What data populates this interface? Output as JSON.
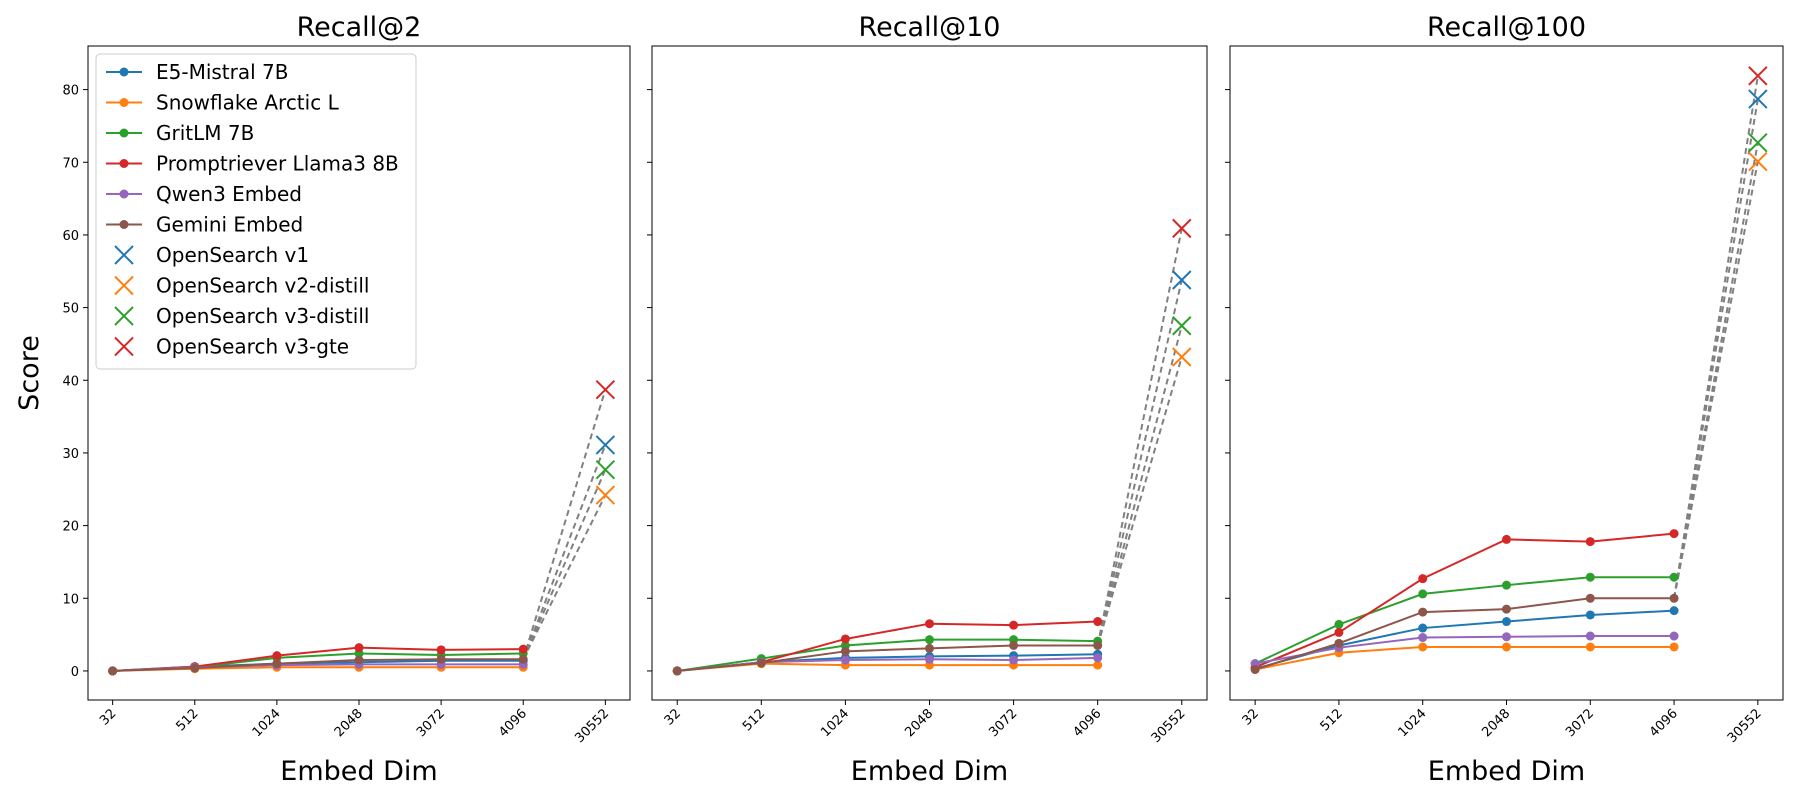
{
  "chart_data": [
    {
      "type": "line",
      "title": "Recall@2",
      "xlabel": "Embed Dim",
      "ylabel": "Score",
      "categories": [
        "32",
        "512",
        "1024",
        "2048",
        "3072",
        "4096",
        "30552"
      ],
      "ylim": [
        -4,
        86
      ],
      "yticks": [
        0,
        10,
        20,
        30,
        40,
        50,
        60,
        70,
        80
      ],
      "show_ytick_labels": true,
      "legend": "upper left",
      "series": [
        {
          "name": "E5-Mistral 7B",
          "color": "#1f77b4",
          "marker": "circle",
          "values": [
            0,
            0.6,
            1.0,
            1.2,
            1.4,
            1.4,
            null
          ]
        },
        {
          "name": "Snowflake Arctic L",
          "color": "#ff7f0e",
          "marker": "circle",
          "values": [
            0,
            0.3,
            0.5,
            0.5,
            0.5,
            0.5,
            null
          ]
        },
        {
          "name": "GritLM 7B",
          "color": "#2ca02c",
          "marker": "circle",
          "values": [
            0,
            0.5,
            1.8,
            2.4,
            2.2,
            2.4,
            null
          ]
        },
        {
          "name": "Promptriever Llama3 8B",
          "color": "#d62728",
          "marker": "circle",
          "values": [
            0,
            0.6,
            2.1,
            3.2,
            2.9,
            3.0,
            null
          ]
        },
        {
          "name": "Qwen3 Embed",
          "color": "#9467bd",
          "marker": "circle",
          "values": [
            0,
            0.5,
            0.8,
            0.9,
            0.9,
            0.9,
            null
          ]
        },
        {
          "name": "Gemini Embed",
          "color": "#8c564b",
          "marker": "circle",
          "values": [
            0,
            0.4,
            1.0,
            1.5,
            1.6,
            1.6,
            null
          ]
        },
        {
          "name": "OpenSearch v1",
          "color": "#1f77b4",
          "marker": "x",
          "values": [
            null,
            null,
            null,
            null,
            null,
            null,
            31.1
          ]
        },
        {
          "name": "OpenSearch v2-distill",
          "color": "#ff7f0e",
          "marker": "x",
          "values": [
            null,
            null,
            null,
            null,
            null,
            null,
            24.2
          ]
        },
        {
          "name": "OpenSearch v3-distill",
          "color": "#2ca02c",
          "marker": "x",
          "values": [
            null,
            null,
            null,
            null,
            null,
            null,
            27.7
          ]
        },
        {
          "name": "OpenSearch v3-gte",
          "color": "#d62728",
          "marker": "x",
          "values": [
            null,
            null,
            null,
            null,
            null,
            null,
            38.7
          ]
        }
      ]
    },
    {
      "type": "line",
      "title": "Recall@10",
      "xlabel": "Embed Dim",
      "categories": [
        "32",
        "512",
        "1024",
        "2048",
        "3072",
        "4096",
        "30552"
      ],
      "ylim": [
        -4,
        86
      ],
      "yticks": [
        0,
        10,
        20,
        30,
        40,
        50,
        60,
        70,
        80
      ],
      "show_ytick_labels": false,
      "series": [
        {
          "name": "E5-Mistral 7B",
          "color": "#1f77b4",
          "marker": "circle",
          "values": [
            0,
            1.2,
            1.8,
            2.0,
            2.1,
            2.3,
            null
          ]
        },
        {
          "name": "Snowflake Arctic L",
          "color": "#ff7f0e",
          "marker": "circle",
          "values": [
            0,
            1.0,
            0.8,
            0.8,
            0.8,
            0.8,
            null
          ]
        },
        {
          "name": "GritLM 7B",
          "color": "#2ca02c",
          "marker": "circle",
          "values": [
            0,
            1.7,
            3.5,
            4.3,
            4.3,
            4.1,
            null
          ]
        },
        {
          "name": "Promptriever Llama3 8B",
          "color": "#d62728",
          "marker": "circle",
          "values": [
            0,
            1.2,
            4.4,
            6.5,
            6.3,
            6.8,
            null
          ]
        },
        {
          "name": "Qwen3 Embed",
          "color": "#9467bd",
          "marker": "circle",
          "values": [
            0,
            1.2,
            1.5,
            1.6,
            1.5,
            1.8,
            null
          ]
        },
        {
          "name": "Gemini Embed",
          "color": "#8c564b",
          "marker": "circle",
          "values": [
            0,
            1.1,
            2.7,
            3.1,
            3.5,
            3.5,
            null
          ]
        },
        {
          "name": "OpenSearch v1",
          "color": "#1f77b4",
          "marker": "x",
          "values": [
            null,
            null,
            null,
            null,
            null,
            null,
            53.8
          ]
        },
        {
          "name": "OpenSearch v2-distill",
          "color": "#ff7f0e",
          "marker": "x",
          "values": [
            null,
            null,
            null,
            null,
            null,
            null,
            43.2
          ]
        },
        {
          "name": "OpenSearch v3-distill",
          "color": "#2ca02c",
          "marker": "x",
          "values": [
            null,
            null,
            null,
            null,
            null,
            null,
            47.5
          ]
        },
        {
          "name": "OpenSearch v3-gte",
          "color": "#d62728",
          "marker": "x",
          "values": [
            null,
            null,
            null,
            null,
            null,
            null,
            60.9
          ]
        }
      ]
    },
    {
      "type": "line",
      "title": "Recall@100",
      "xlabel": "Embed Dim",
      "categories": [
        "32",
        "512",
        "1024",
        "2048",
        "3072",
        "4096",
        "30552"
      ],
      "ylim": [
        -4,
        86
      ],
      "yticks": [
        0,
        10,
        20,
        30,
        40,
        50,
        60,
        70,
        80
      ],
      "show_ytick_labels": false,
      "series": [
        {
          "name": "E5-Mistral 7B",
          "color": "#1f77b4",
          "marker": "circle",
          "values": [
            0.3,
            3.5,
            5.9,
            6.8,
            7.7,
            8.3,
            null
          ]
        },
        {
          "name": "Snowflake Arctic L",
          "color": "#ff7f0e",
          "marker": "circle",
          "values": [
            0.2,
            2.5,
            3.3,
            3.3,
            3.3,
            3.3,
            null
          ]
        },
        {
          "name": "GritLM 7B",
          "color": "#2ca02c",
          "marker": "circle",
          "values": [
            1.0,
            6.4,
            10.6,
            11.8,
            12.9,
            12.9,
            null
          ]
        },
        {
          "name": "Promptriever Llama3 8B",
          "color": "#d62728",
          "marker": "circle",
          "values": [
            0.5,
            5.3,
            12.7,
            18.1,
            17.8,
            18.9,
            null
          ]
        },
        {
          "name": "Qwen3 Embed",
          "color": "#9467bd",
          "marker": "circle",
          "values": [
            1.0,
            3.2,
            4.6,
            4.7,
            4.8,
            4.8,
            null
          ]
        },
        {
          "name": "Gemini Embed",
          "color": "#8c564b",
          "marker": "circle",
          "values": [
            0.2,
            3.8,
            8.1,
            8.5,
            10.0,
            10.0,
            null
          ]
        },
        {
          "name": "OpenSearch v1",
          "color": "#1f77b4",
          "marker": "x",
          "values": [
            null,
            null,
            null,
            null,
            null,
            null,
            78.7
          ]
        },
        {
          "name": "OpenSearch v2-distill",
          "color": "#ff7f0e",
          "marker": "x",
          "values": [
            null,
            null,
            null,
            null,
            null,
            null,
            70.1
          ]
        },
        {
          "name": "OpenSearch v3-distill",
          "color": "#2ca02c",
          "marker": "x",
          "values": [
            null,
            null,
            null,
            null,
            null,
            null,
            72.7
          ]
        },
        {
          "name": "OpenSearch v3-gte",
          "color": "#d62728",
          "marker": "x",
          "values": [
            null,
            null,
            null,
            null,
            null,
            null,
            81.9
          ]
        }
      ]
    }
  ]
}
